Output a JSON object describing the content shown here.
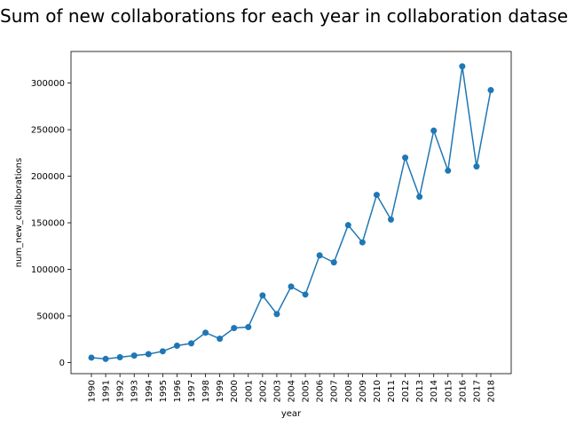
{
  "chart_data": {
    "type": "line",
    "title": "Sum of new collaborations for each year in collaboration dataset",
    "xlabel": "year",
    "ylabel": "num_new_collaborations",
    "x": [
      "1990",
      "1991",
      "1992",
      "1993",
      "1994",
      "1995",
      "1996",
      "1997",
      "1998",
      "1999",
      "2000",
      "2001",
      "2002",
      "2003",
      "2004",
      "2005",
      "2006",
      "2007",
      "2008",
      "2009",
      "2010",
      "2011",
      "2012",
      "2013",
      "2014",
      "2015",
      "2016",
      "2017",
      "2018"
    ],
    "series": [
      {
        "values": [
          5200,
          3800,
          5600,
          7400,
          9000,
          12000,
          18000,
          20500,
          32000,
          25500,
          37000,
          38000,
          72000,
          52000,
          81500,
          73000,
          115000,
          107500,
          147500,
          129000,
          180000,
          153500,
          220000,
          178000,
          249000,
          206000,
          318000,
          210500,
          292500
        ],
        "color": "#1f77b4"
      }
    ],
    "yticks": [
      0,
      50000,
      100000,
      150000,
      200000,
      250000,
      300000
    ],
    "ylim": [
      -12000,
      334000
    ],
    "grid": false,
    "marker": "circle"
  }
}
